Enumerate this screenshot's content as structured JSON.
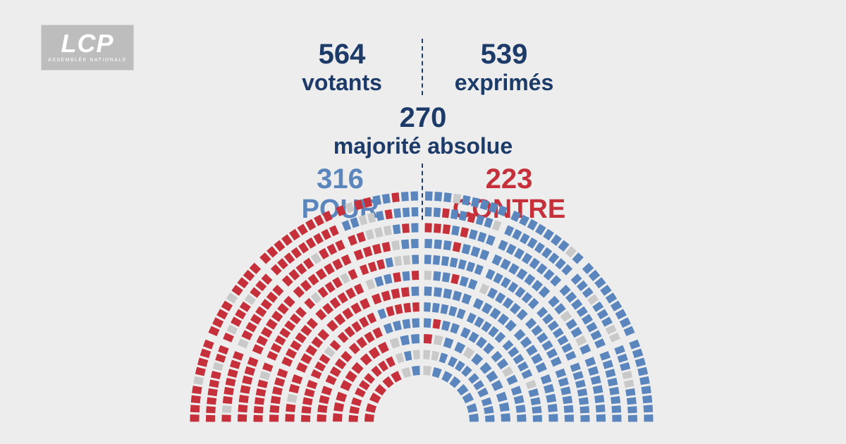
{
  "logo": {
    "brand": "LCP",
    "subtitle": "ASSEMBLÉE NATIONALE"
  },
  "stats": {
    "votants": {
      "value": "564",
      "label": "votants"
    },
    "exprimes": {
      "value": "539",
      "label": "exprimés"
    },
    "majorite": {
      "value": "270",
      "label": "majorité absolue"
    },
    "pour": {
      "value": "316",
      "label": "POUR"
    },
    "contre": {
      "value": "223",
      "label": "CONTRE"
    }
  },
  "colors": {
    "pour": "#5a86bd",
    "contre": "#c5303a",
    "abstention": "#c9c9c9",
    "absent": "#ffffff",
    "text": "#1d3b68",
    "background": "#ededed"
  }
}
